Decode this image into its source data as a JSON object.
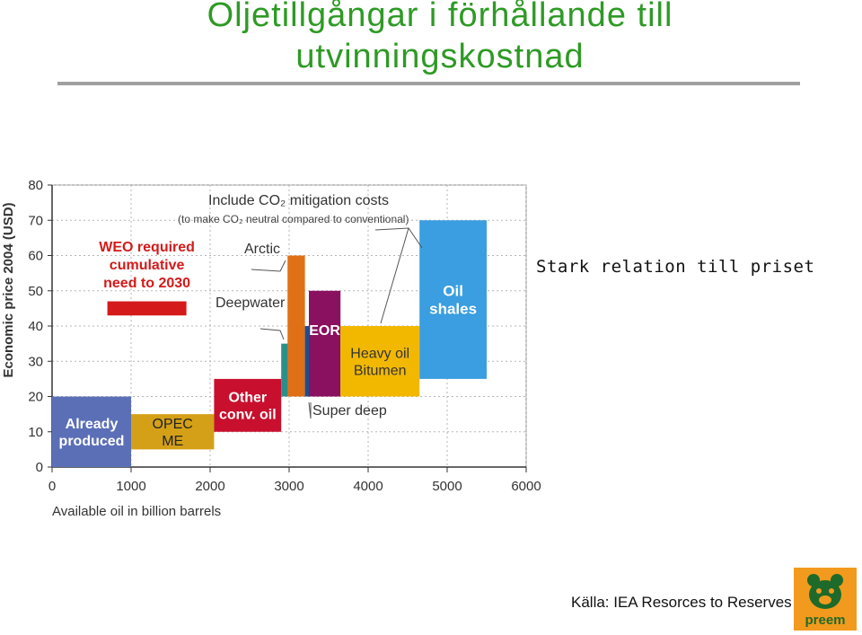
{
  "slide": {
    "title_line1": "Oljetillgångar i förhållande till",
    "title_line2": "utvinningskostnad",
    "subtitle": "Stark relation till priset",
    "source": "Källa: IEA Resorces to Reserves 2005",
    "logo_text": "preem"
  },
  "colors": {
    "title": "#2e9a25",
    "already_produced": "#5b6fb7",
    "opec_me": "#d4a017",
    "other_conv_oil": "#c8102e",
    "deepwater": "#2a8f8a",
    "arctic": "#e07016",
    "eor": "#8a1060",
    "super_deep": "#1d4e8f",
    "heavy_oil": "#f2b800",
    "oil_shales": "#3a9ee0",
    "weo": "#d41a1a"
  },
  "chart_data": {
    "type": "bar",
    "subtype": "supply-cost-curve",
    "xlabel": "Available oil in billion barrels",
    "ylabel": "Economic price 2004 (USD)",
    "xlim": [
      0,
      6000
    ],
    "ylim": [
      0,
      80
    ],
    "xticks": [
      "0",
      "1000",
      "2000",
      "3000",
      "4000",
      "5000",
      "6000"
    ],
    "yticks": [
      "0",
      "10",
      "20",
      "30",
      "40",
      "50",
      "60",
      "70",
      "80"
    ],
    "grid": true,
    "series": [
      {
        "name": "Already produced",
        "x0": 0,
        "x1": 1000,
        "y0": 0,
        "y1": 20,
        "color": "already_produced",
        "text": "#ffffff"
      },
      {
        "name": "OPEC ME",
        "x0": 1000,
        "x1": 2050,
        "y0": 5,
        "y1": 15,
        "color": "opec_me",
        "text": "#222222"
      },
      {
        "name": "Other conv. oil",
        "x0": 2050,
        "x1": 2900,
        "y0": 10,
        "y1": 25,
        "color": "other_conv_oil",
        "text": "#ffffff"
      },
      {
        "name": "Deepwater",
        "x0": 2900,
        "x1": 3000,
        "y0": 20,
        "y1": 35,
        "color": "deepwater",
        "text": "#ffffff"
      },
      {
        "name": "Arctic",
        "x0": 2980,
        "x1": 3200,
        "y0": 20,
        "y1": 60,
        "color": "arctic",
        "text": "#ffffff"
      },
      {
        "name": "Super deep",
        "x0": 3200,
        "x1": 3270,
        "y0": 20,
        "y1": 40,
        "color": "super_deep",
        "text": "#ffffff"
      },
      {
        "name": "EOR",
        "x0": 3250,
        "x1": 3650,
        "y0": 20,
        "y1": 50,
        "color": "eor",
        "text": "#ffffff"
      },
      {
        "name": "Heavy oil Bitumen",
        "x0": 3650,
        "x1": 4650,
        "y0": 20,
        "y1": 40,
        "color": "heavy_oil",
        "text": "#333333"
      },
      {
        "name": "Oil shales",
        "x0": 4650,
        "x1": 5500,
        "y0": 25,
        "y1": 70,
        "color": "oil_shales",
        "text": "#ffffff"
      }
    ],
    "weo_marker": {
      "x0": 700,
      "x1": 1700,
      "y0": 43,
      "y1": 47
    },
    "annotations": {
      "weo": [
        "WEO required",
        "cumulative",
        "need to 2030"
      ],
      "co2_line1": "Include CO₂ mitigation costs",
      "co2_line2": "(to make CO₂ neutral compared to conventional)",
      "arctic": "Arctic",
      "deepwater": "Deepwater",
      "super_deep": "Super deep",
      "eor": "EOR",
      "heavy_oil": [
        "Heavy oil",
        "Bitumen"
      ],
      "oil_shales": [
        "Oil",
        "shales"
      ],
      "already_produced": [
        "Already",
        "produced"
      ],
      "opec_me": [
        "OPEC",
        "ME"
      ],
      "other_conv_oil": [
        "Other",
        "conv. oil"
      ]
    }
  }
}
